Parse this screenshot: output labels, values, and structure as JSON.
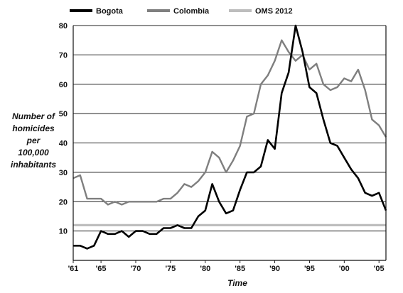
{
  "chart_data": {
    "type": "line",
    "xlabel": "Time",
    "ylabel_lines": [
      "Number of",
      "homicides",
      "per",
      "100,000",
      "inhabitants"
    ],
    "ylim": [
      0,
      80
    ],
    "yticks": [
      10,
      20,
      30,
      40,
      50,
      60,
      70,
      80
    ],
    "xlim": [
      1961,
      2006
    ],
    "xticks": [
      {
        "x": 1961,
        "label": "'61"
      },
      {
        "x": 1965,
        "label": "'65"
      },
      {
        "x": 1970,
        "label": "'70"
      },
      {
        "x": 1975,
        "label": "'75"
      },
      {
        "x": 1980,
        "label": "'80"
      },
      {
        "x": 1985,
        "label": "'85"
      },
      {
        "x": 1990,
        "label": "'90"
      },
      {
        "x": 1995,
        "label": "'95"
      },
      {
        "x": 2000,
        "label": "'00"
      },
      {
        "x": 2005,
        "label": "'05"
      }
    ],
    "grid": "horizontal",
    "legend_position": "top",
    "x": [
      1961,
      1962,
      1963,
      1964,
      1965,
      1966,
      1967,
      1968,
      1969,
      1970,
      1971,
      1972,
      1973,
      1974,
      1975,
      1976,
      1977,
      1978,
      1979,
      1980,
      1981,
      1982,
      1983,
      1984,
      1985,
      1986,
      1987,
      1988,
      1989,
      1990,
      1991,
      1992,
      1993,
      1994,
      1995,
      1996,
      1997,
      1998,
      1999,
      2000,
      2001,
      2002,
      2003,
      2004,
      2005,
      2006
    ],
    "series": [
      {
        "name": "Bogota",
        "color": "#000000",
        "values": [
          5,
          5,
          4,
          5,
          10,
          9,
          9,
          10,
          8,
          10,
          10,
          9,
          9,
          11,
          11,
          12,
          11,
          11,
          15,
          17,
          26,
          20,
          16,
          17,
          24,
          30,
          30,
          32,
          41,
          38,
          57,
          64,
          80,
          71,
          59,
          57,
          48,
          40,
          39,
          35,
          31,
          28,
          23,
          22,
          23,
          17
        ]
      },
      {
        "name": "Colombia",
        "color": "#7f7f7f",
        "values": [
          28,
          29,
          21,
          21,
          21,
          19,
          20,
          19,
          20,
          20,
          20,
          20,
          20,
          21,
          21,
          23,
          26,
          25,
          27,
          30,
          37,
          35,
          30,
          34,
          39,
          49,
          50,
          60,
          63,
          68,
          75,
          71,
          68,
          70,
          65,
          67,
          60,
          58,
          59,
          62,
          61,
          65,
          58,
          48,
          46,
          42
        ]
      },
      {
        "name": "OMS 2012",
        "color": "#bdbdbd",
        "values": [
          12,
          12,
          12,
          12,
          12,
          12,
          12,
          12,
          12,
          12,
          12,
          12,
          12,
          12,
          12,
          12,
          12,
          12,
          12,
          12,
          12,
          12,
          12,
          12,
          12,
          12,
          12,
          12,
          12,
          12,
          12,
          12,
          12,
          12,
          12,
          12,
          12,
          12,
          12,
          12,
          12,
          12,
          12,
          12,
          12,
          12
        ]
      }
    ]
  }
}
